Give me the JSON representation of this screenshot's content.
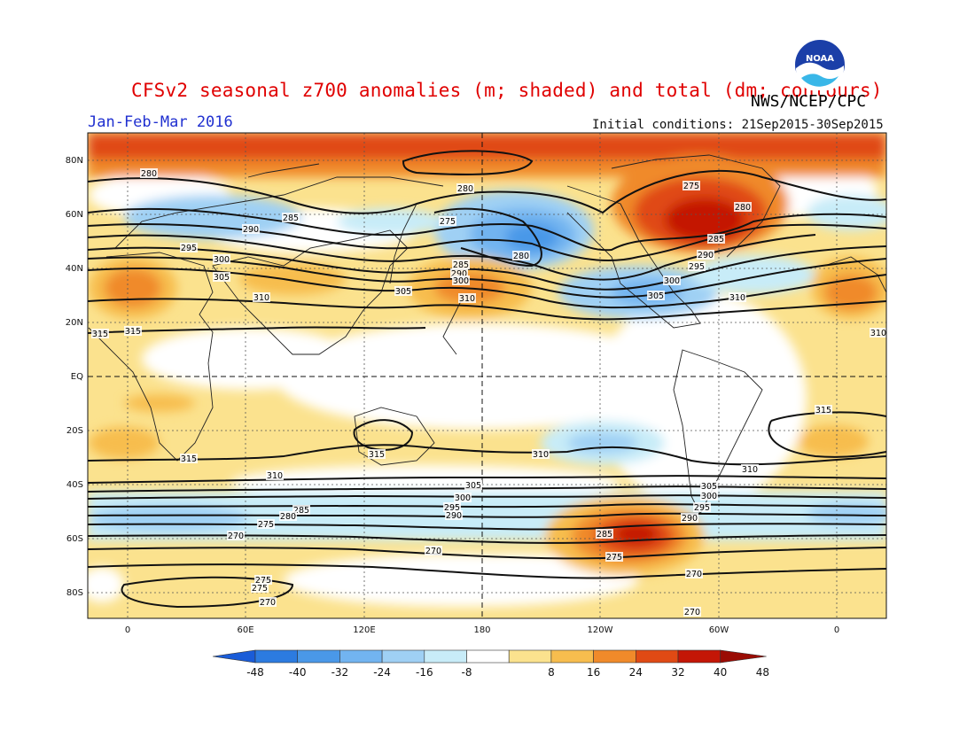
{
  "header": {
    "title": "CFSv2 seasonal z700 anomalies (m; shaded) and total (dm; contours)",
    "agency": "NWS/NCEP/CPC",
    "period": "Jan-Feb-Mar 2016",
    "initial_conditions": "Initial conditions: 21Sep2015-30Sep2015",
    "logo_text": "NOAA"
  },
  "map": {
    "lat_labels": [
      "80N",
      "60N",
      "40N",
      "20N",
      "EQ",
      "20S",
      "40S",
      "60S",
      "80S"
    ],
    "lon_labels": [
      "0",
      "60E",
      "120E",
      "180",
      "120W",
      "60W",
      "0"
    ],
    "contour_labels": [
      "280",
      "280",
      "285",
      "290",
      "295",
      "300",
      "305",
      "310",
      "315",
      "275",
      "280",
      "285",
      "290",
      "295",
      "300",
      "305",
      "310",
      "310",
      "275",
      "280",
      "285",
      "290",
      "300",
      "305",
      "310",
      "315",
      "315",
      "315",
      "310",
      "315",
      "310",
      "305",
      "300",
      "295",
      "290",
      "285",
      "280",
      "275",
      "270",
      "270",
      "275",
      "275",
      "270",
      "270",
      "270",
      "285",
      "275",
      "290",
      "295",
      "300",
      "305",
      "310"
    ]
  },
  "colorbar": {
    "ticks": [
      "-48",
      "-40",
      "-32",
      "-24",
      "-16",
      "-8",
      "8",
      "16",
      "24",
      "32",
      "40",
      "48"
    ],
    "colors": [
      "#1a5cd8",
      "#2c7be0",
      "#4a98e8",
      "#72b4f0",
      "#9fd0f4",
      "#c8ecf8",
      "#ffffff",
      "#fbe28e",
      "#f7bd4e",
      "#f08a2a",
      "#e04a14",
      "#c41606",
      "#9a0c04"
    ]
  }
}
